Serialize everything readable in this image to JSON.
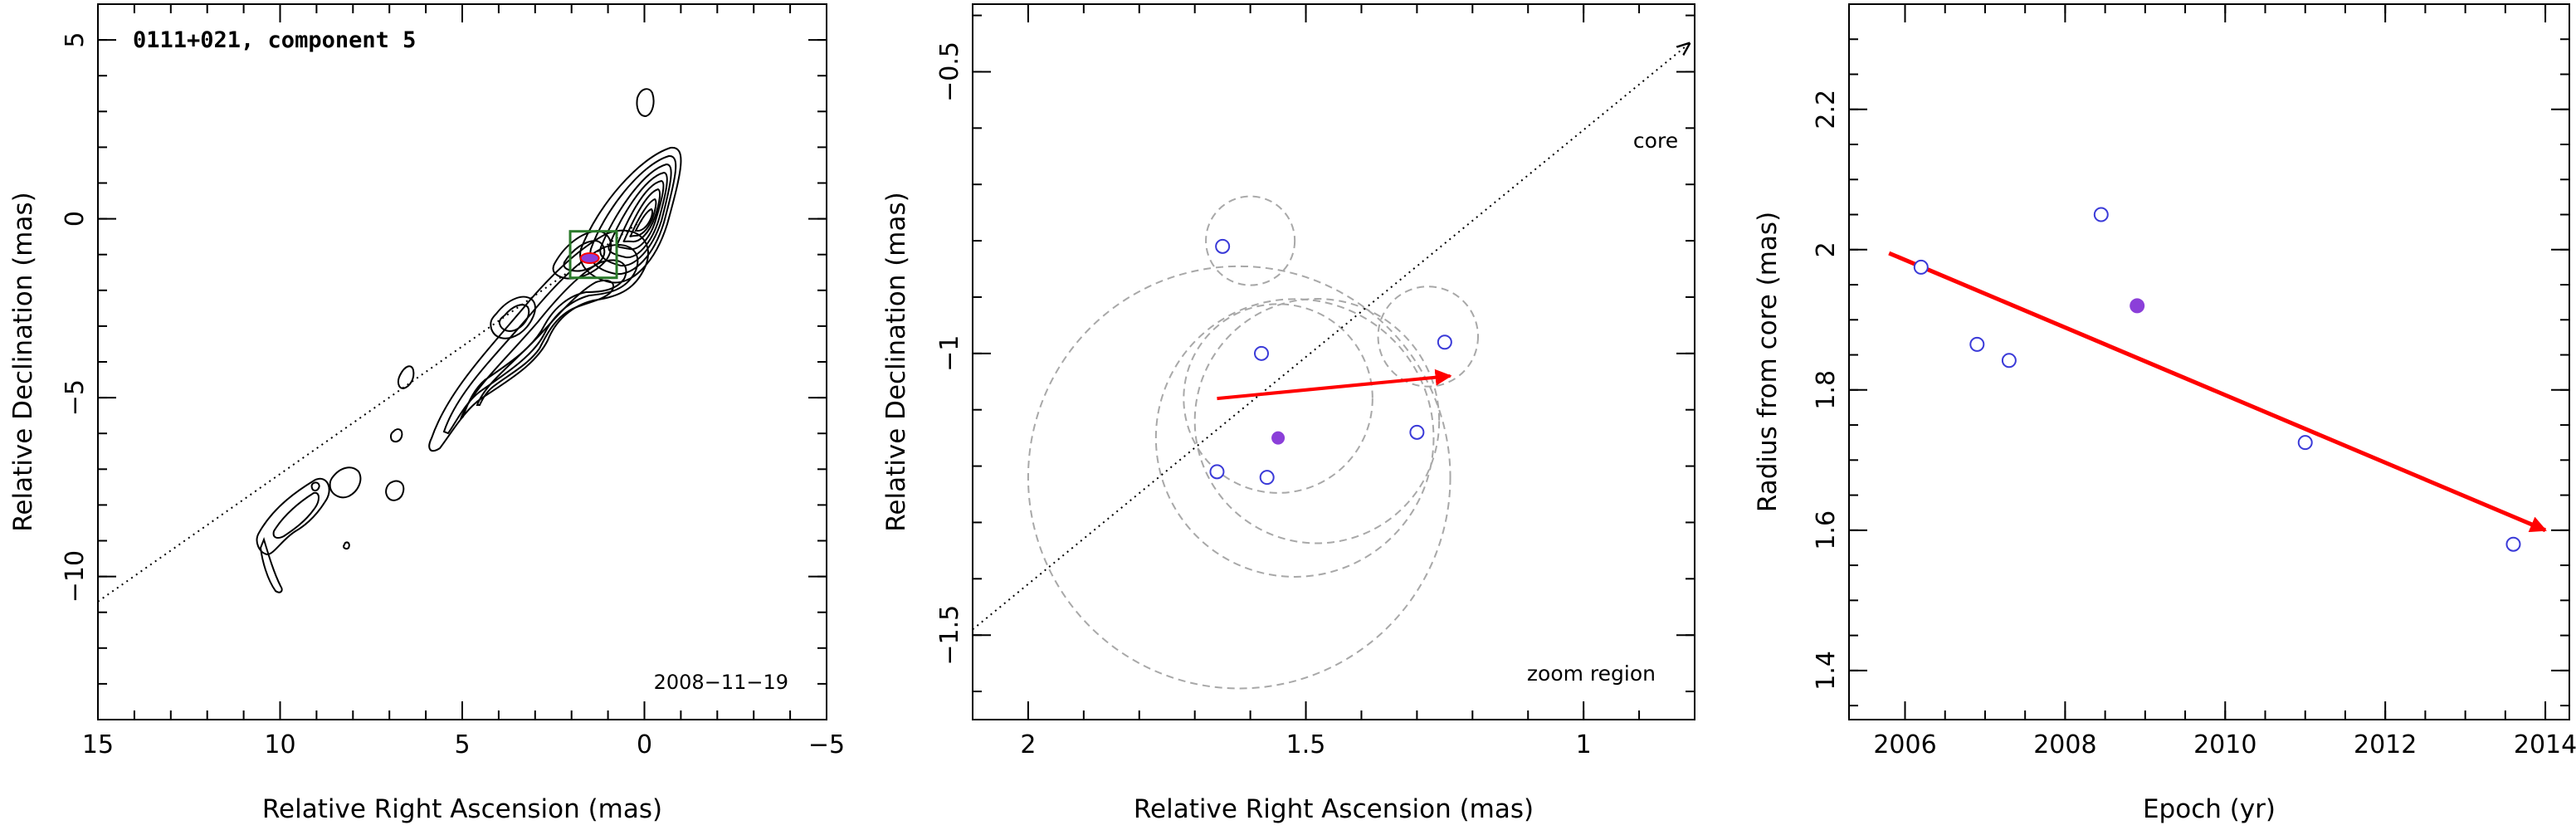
{
  "chart_data": [
    {
      "type": "scatter",
      "panel": "contour-map",
      "title": "0111+021, component 5",
      "xlabel": "Relative Right Ascension (mas)",
      "ylabel": "Relative Declination (mas)",
      "xlim": [
        15,
        -5
      ],
      "ylim": [
        -14,
        6
      ],
      "xticks": [
        "15",
        "10",
        "5",
        "0",
        "−5"
      ],
      "yticks": [
        "5",
        "0",
        "−5",
        "−10"
      ],
      "date_label": "2008−11−19",
      "component_position": {
        "x": 1.5,
        "y": -1.1
      },
      "zoom_box_center": {
        "x": 1.4,
        "y": -1.0
      },
      "jet_axis_line": [
        {
          "x": 15,
          "y": -10.7
        },
        {
          "x": 0,
          "y": 0
        }
      ],
      "colors": {
        "box": "#2a7a2a",
        "marker": "#8b3fd9",
        "arrow": "#ff0000"
      }
    },
    {
      "type": "scatter",
      "panel": "zoom-region",
      "xlabel": "Relative Right Ascension (mas)",
      "ylabel": "Relative Declination (mas)",
      "xlim": [
        2.1,
        0.8
      ],
      "ylim": [
        -1.65,
        -0.38
      ],
      "xticks": [
        "2",
        "1.5",
        "1"
      ],
      "yticks": [
        "−0.5",
        "−1",
        "−1.5"
      ],
      "zoom_label": "zoom region",
      "core_label": "core",
      "open_points": [
        {
          "x": 1.65,
          "y": -0.81
        },
        {
          "x": 1.58,
          "y": -1.0
        },
        {
          "x": 1.25,
          "y": -0.98
        },
        {
          "x": 1.3,
          "y": -1.14
        },
        {
          "x": 1.66,
          "y": -1.21
        },
        {
          "x": 1.57,
          "y": -1.22
        }
      ],
      "filled_point": {
        "x": 1.55,
        "y": -1.15
      },
      "error_circles": [
        {
          "x": 1.6,
          "y": -0.8,
          "r": 0.08
        },
        {
          "x": 1.28,
          "y": -0.97,
          "r": 0.09
        },
        {
          "x": 1.55,
          "y": -1.08,
          "r": 0.17
        },
        {
          "x": 1.48,
          "y": -1.12,
          "r": 0.22
        },
        {
          "x": 1.52,
          "y": -1.15,
          "r": 0.25
        },
        {
          "x": 1.62,
          "y": -1.22,
          "r": 0.38
        }
      ],
      "motion_vector": {
        "from": {
          "x": 1.66,
          "y": -1.08
        },
        "to": {
          "x": 1.24,
          "y": -1.04
        }
      },
      "jet_axis_line": [
        {
          "x": 2.1,
          "y": -1.49
        },
        {
          "x": 0.81,
          "y": -0.45
        }
      ],
      "colors": {
        "open": "#3a3ad8",
        "filled": "#8b3fd9",
        "arrow": "#ff0000",
        "circles": "#a8a8a8"
      }
    },
    {
      "type": "scatter",
      "panel": "radius-vs-epoch",
      "xlabel": "Epoch (yr)",
      "ylabel": "Radius from core (mas)",
      "xlim": [
        2005.3,
        2014.3
      ],
      "ylim": [
        1.33,
        2.35
      ],
      "xticks": [
        "2006",
        "2008",
        "2010",
        "2012",
        "2014"
      ],
      "yticks": [
        "1.4",
        "1.6",
        "1.8",
        "2",
        "2.2"
      ],
      "open_points": [
        {
          "x": 2006.2,
          "y": 1.975
        },
        {
          "x": 2006.9,
          "y": 1.865
        },
        {
          "x": 2007.3,
          "y": 1.842
        },
        {
          "x": 2008.45,
          "y": 2.05
        },
        {
          "x": 2011.0,
          "y": 1.725
        },
        {
          "x": 2013.6,
          "y": 1.58
        }
      ],
      "filled_point": {
        "x": 2008.9,
        "y": 1.92
      },
      "fit_line": [
        {
          "x": 2005.8,
          "y": 1.995
        },
        {
          "x": 2014.0,
          "y": 1.6
        }
      ],
      "colors": {
        "open": "#3a3ad8",
        "filled": "#8b3fd9",
        "arrow": "#ff0000"
      }
    }
  ]
}
